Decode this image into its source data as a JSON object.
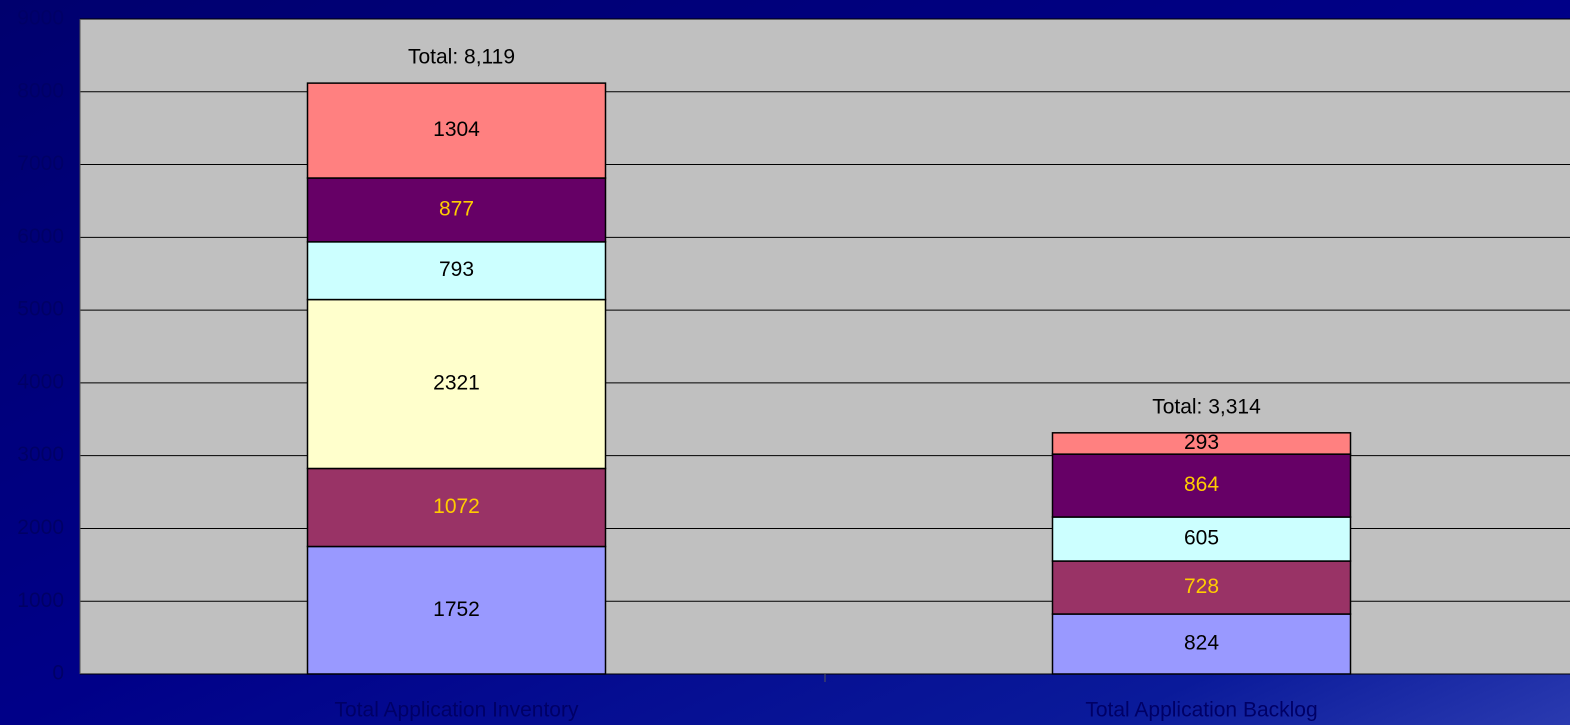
{
  "chart_data": {
    "type": "stacked_bar",
    "categories": [
      "Total Application Inventory",
      "Total Application Backlog"
    ],
    "series": [
      {
        "color": "#9999ff",
        "label_color": "#000000",
        "values": [
          1752,
          824
        ]
      },
      {
        "color": "#993366",
        "label_color": "#ffcc00",
        "values": [
          1072,
          728
        ]
      },
      {
        "color": "#ffffcc",
        "label_color": "#000000",
        "values": [
          2321,
          null
        ]
      },
      {
        "color": "#ccffff",
        "label_color": "#000000",
        "values": [
          793,
          605
        ]
      },
      {
        "color": "#660066",
        "label_color": "#ffcc00",
        "values": [
          877,
          864
        ]
      },
      {
        "color": "#ff8080",
        "label_color": "#000000",
        "values": [
          1304,
          293
        ]
      }
    ],
    "annotations": [
      "Total: 8,119",
      "Total: 3,314"
    ],
    "ylim": [
      0,
      9000
    ],
    "yticks": [
      0,
      1000,
      2000,
      3000,
      4000,
      5000,
      6000,
      7000,
      8000,
      9000
    ],
    "grid": true
  }
}
